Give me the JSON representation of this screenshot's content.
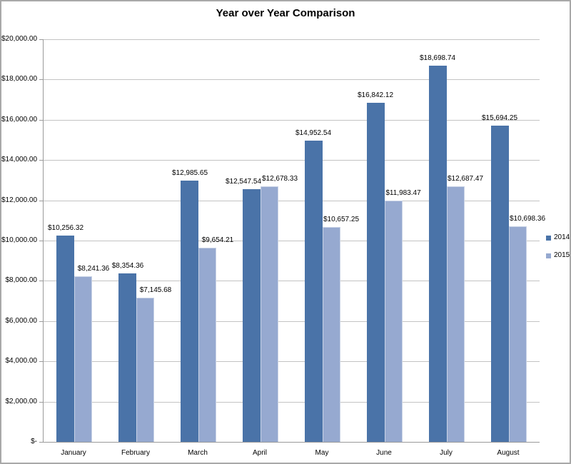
{
  "title": "Year over Year Comparison",
  "colors": {
    "series_2014": "#4a73a8",
    "series_2015": "#96a9d0",
    "gridline": "#c3c3c3",
    "axis": "#9a9a9a",
    "chart_border": "#a8a8a8",
    "text": "#000000"
  },
  "chart_data": {
    "type": "bar",
    "title": "Year over Year Comparison",
    "categories": [
      "January",
      "February",
      "March",
      "April",
      "May",
      "June",
      "July",
      "August"
    ],
    "series": [
      {
        "name": "2014",
        "color": "#4a73a8",
        "values": [
          10256.32,
          8354.36,
          12985.65,
          12547.54,
          14952.54,
          16842.12,
          18698.74,
          15694.25
        ],
        "data_labels": [
          "$10,256.32",
          "$8,354.36",
          "$12,985.65",
          "$12,547.54",
          "$14,952.54",
          "$16,842.12",
          "$18,698.74",
          "$15,694.25"
        ]
      },
      {
        "name": "2015",
        "color": "#96a9d0",
        "values": [
          8241.36,
          7145.68,
          9654.21,
          12678.33,
          10657.25,
          11983.47,
          12687.47,
          10698.36
        ],
        "data_labels": [
          "$8,241.36",
          "$7,145.68",
          "$9,654.21",
          "$12,678.33",
          "$10,657.25",
          "$11,983.47",
          "$12,687.47",
          "$10,698.36"
        ]
      }
    ],
    "y_axis": {
      "min": 0,
      "max": 20000,
      "step": 2000,
      "tick_labels_top_to_bottom": [
        "$20,000.00",
        "$18,000.00",
        "$16,000.00",
        "$14,000.00",
        "$12,000.00",
        "$10,000.00",
        "$8,000.00",
        "$6,000.00",
        "$4,000.00",
        "$2,000.00",
        "$-"
      ]
    },
    "grid": true,
    "legend_position": "right",
    "legend_entries": [
      "2014",
      "2015"
    ]
  }
}
